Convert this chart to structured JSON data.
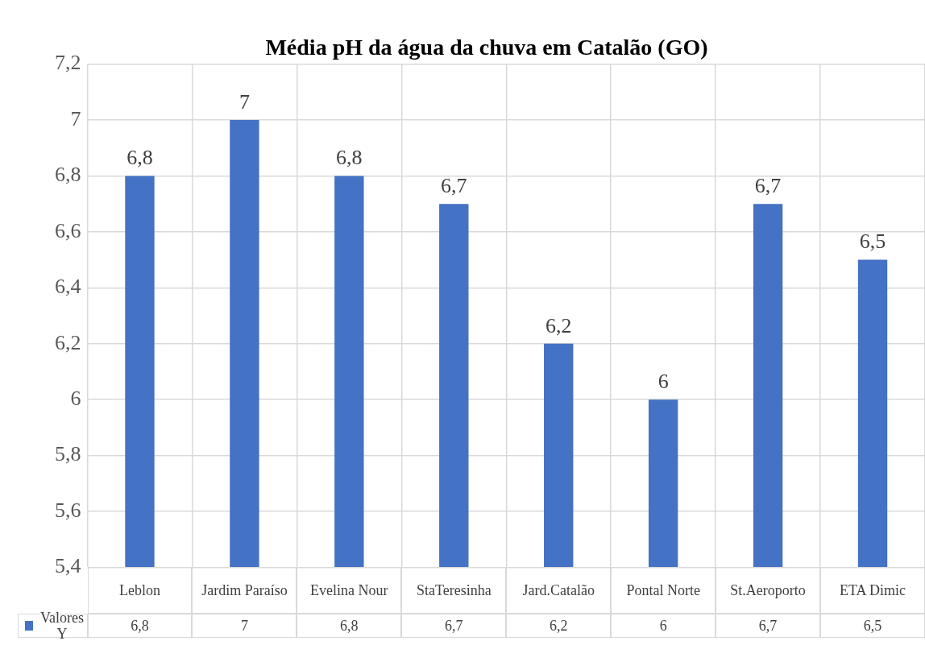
{
  "chart_data": {
    "type": "bar",
    "title": "Média pH da água da chuva em Catalão (GO)",
    "categories": [
      "Leblon",
      "Jardim Paraíso",
      "Evelina Nour",
      "StaTeresinha",
      "Jard.Catalão",
      "Pontal Norte",
      "St.Aeroporto",
      "ETA Dimic"
    ],
    "series": [
      {
        "name": "Valores Y",
        "color": "#4472c4",
        "values": [
          6.8,
          7,
          6.8,
          6.7,
          6.2,
          6,
          6.7,
          6.5
        ],
        "value_labels": [
          "6,8",
          "7",
          "6,8",
          "6,7",
          "6,2",
          "6",
          "6,7",
          "6,5"
        ]
      }
    ],
    "ylim": [
      5.4,
      7.2
    ],
    "yticks": [
      {
        "value": 5.4,
        "label": "5,4"
      },
      {
        "value": 5.6,
        "label": "5,6"
      },
      {
        "value": 5.8,
        "label": "5,8"
      },
      6,
      {
        "value": 6.2,
        "label": "6,2"
      },
      {
        "value": 6.4,
        "label": "6,4"
      },
      {
        "value": 6.6,
        "label": "6,6"
      },
      {
        "value": 6.8,
        "label": "6,8"
      },
      7,
      {
        "value": 7.2,
        "label": "7,2"
      }
    ],
    "grid": true,
    "legend": "bottom"
  }
}
